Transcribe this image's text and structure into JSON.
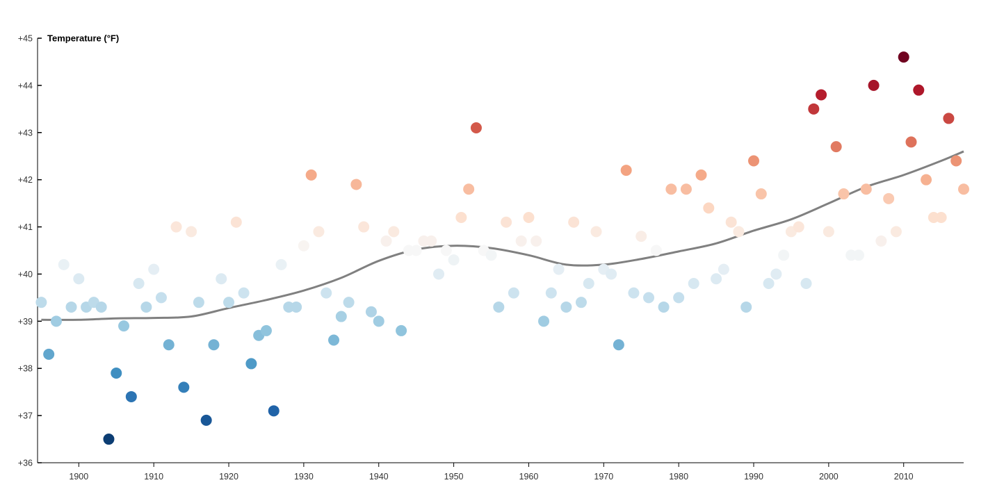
{
  "chart_data": {
    "type": "scatter",
    "title": "",
    "ylabel": "Temperature (°F)",
    "xlabel": "",
    "xlim": [
      1894.5,
      2018
    ],
    "ylim": [
      36,
      45
    ],
    "x_ticks": [
      1900,
      1910,
      1920,
      1930,
      1940,
      1950,
      1960,
      1970,
      1980,
      1990,
      2000,
      2010
    ],
    "y_ticks": [
      36,
      37,
      38,
      39,
      40,
      41,
      42,
      43,
      44,
      45
    ],
    "y_tick_labels": [
      "+36",
      "+37",
      "+38",
      "+39",
      "+40",
      "+41",
      "+42",
      "+43",
      "+44",
      "+45"
    ],
    "x_tick_labels": [
      "1900",
      "1910",
      "1920",
      "1930",
      "1940",
      "1950",
      "1960",
      "1970",
      "1980",
      "1990",
      "2000",
      "2010"
    ],
    "color_scale": "diverging red-blue, blue = colder, red = warmer",
    "color_mid": 40.5,
    "series": [
      {
        "x": [
          1895,
          1896,
          1897,
          1898,
          1899,
          1900,
          1901,
          1902,
          1903,
          1904,
          1905,
          1906,
          1907,
          1908,
          1909,
          1910,
          1911,
          1912,
          1913,
          1914,
          1915,
          1916,
          1917,
          1918,
          1919,
          1920,
          1921,
          1922,
          1923,
          1924,
          1925,
          1926,
          1927,
          1928,
          1929,
          1930,
          1931,
          1932,
          1933,
          1934,
          1935,
          1936,
          1937,
          1938,
          1939,
          1940,
          1941,
          1942,
          1943,
          1944,
          1945,
          1946,
          1947,
          1948,
          1949,
          1950,
          1951,
          1952,
          1953,
          1954,
          1955,
          1956,
          1957,
          1958,
          1959,
          1960,
          1961,
          1962,
          1963,
          1964,
          1965,
          1966,
          1967,
          1968,
          1969,
          1970,
          1971,
          1972,
          1973,
          1974,
          1975,
          1976,
          1977,
          1978,
          1979,
          1980,
          1981,
          1982,
          1983,
          1984,
          1985,
          1986,
          1987,
          1988,
          1989,
          1990,
          1991,
          1992,
          1993,
          1994,
          1995,
          1996,
          1997,
          1998,
          1999,
          2000,
          2001,
          2002,
          2003,
          2004,
          2005,
          2006,
          2007,
          2008,
          2009,
          2010,
          2011,
          2012,
          2013,
          2014,
          2015,
          2016,
          2017,
          2018
        ],
        "y": [
          39.4,
          38.3,
          39.0,
          40.2,
          39.3,
          39.9,
          39.3,
          39.4,
          39.3,
          36.5,
          37.9,
          38.9,
          37.4,
          39.8,
          39.3,
          40.1,
          39.5,
          38.5,
          41.0,
          37.6,
          40.9,
          39.4,
          36.9,
          38.5,
          39.9,
          39.4,
          41.1,
          39.6,
          38.1,
          38.7,
          38.8,
          37.1,
          40.2,
          39.3,
          39.3,
          40.6,
          42.1,
          40.9,
          39.6,
          38.6,
          39.1,
          39.4,
          41.9,
          41.0,
          39.2,
          39.0,
          40.7,
          40.9,
          38.8,
          40.5,
          40.5,
          40.7,
          40.7,
          40.0,
          40.5,
          40.3,
          41.2,
          41.8,
          43.1,
          40.5,
          40.4,
          39.3,
          41.1,
          39.6,
          40.7,
          41.2,
          40.7,
          39.0,
          39.6,
          40.1,
          39.3,
          41.1,
          39.4,
          39.8,
          40.9,
          40.1,
          40.0,
          38.5,
          42.2,
          39.6,
          40.8,
          39.5,
          40.5,
          39.3,
          41.8,
          39.5,
          41.8,
          39.8,
          42.1,
          41.4,
          39.9,
          40.1,
          41.1,
          40.9,
          39.3,
          42.4,
          41.7,
          39.8,
          40.0,
          40.4,
          40.9,
          41.0,
          39.8,
          43.5,
          43.8,
          40.9,
          42.7,
          41.7,
          40.4,
          40.4,
          41.8,
          44.0,
          40.7,
          41.6,
          40.9,
          44.6,
          42.8,
          43.9,
          42.0,
          41.2,
          41.2,
          43.3,
          42.4,
          41.8
        ]
      }
    ],
    "trend_line": {
      "x": [
        1895,
        1900,
        1905,
        1910,
        1915,
        1920,
        1925,
        1930,
        1935,
        1940,
        1945,
        1950,
        1955,
        1960,
        1965,
        1970,
        1975,
        1980,
        1985,
        1990,
        1995,
        2000,
        2005,
        2010,
        2015,
        2018
      ],
      "y": [
        39.03,
        39.03,
        39.06,
        39.07,
        39.1,
        39.28,
        39.45,
        39.65,
        39.92,
        40.28,
        40.52,
        40.6,
        40.55,
        40.4,
        40.2,
        40.2,
        40.32,
        40.48,
        40.65,
        40.92,
        41.16,
        41.5,
        41.85,
        42.1,
        42.4,
        42.6
      ],
      "color": "#808080"
    }
  }
}
